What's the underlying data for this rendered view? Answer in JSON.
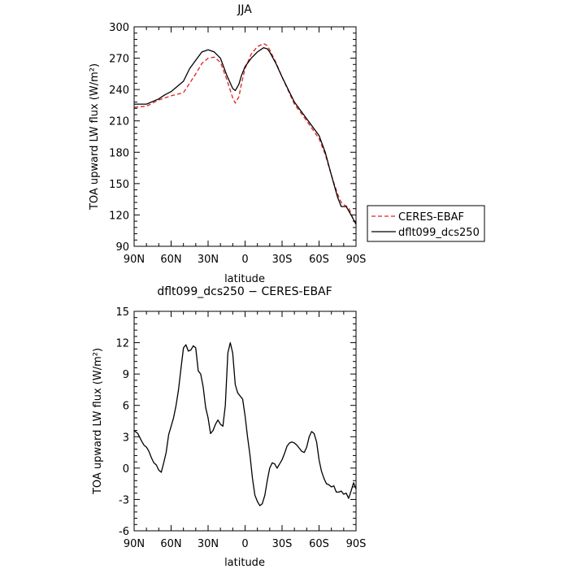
{
  "chart_data": [
    {
      "type": "line",
      "title": "JJA",
      "xlabel": "latitude",
      "ylabel": "TOA upward LW flux (W/m²)",
      "xlim": [
        90,
        -90
      ],
      "ylim": [
        90,
        300
      ],
      "yticks": [
        90,
        120,
        150,
        180,
        210,
        240,
        270,
        300
      ],
      "xticks": [
        90,
        60,
        30,
        0,
        -30,
        -60,
        -90
      ],
      "xtick_labels": [
        "90N",
        "60N",
        "30N",
        "0",
        "30S",
        "60S",
        "90S"
      ],
      "grid": false,
      "legend": {
        "placement": "right-outside",
        "entries": [
          "CERES-EBAF",
          "dflt099_dcs250"
        ]
      },
      "series": [
        {
          "name": "CERES-EBAF",
          "color": "#e02020",
          "style": "dashed",
          "x": [
            90,
            80,
            70,
            60,
            50,
            40,
            35,
            30,
            25,
            20,
            15,
            10,
            8,
            5,
            3,
            0,
            -5,
            -10,
            -15,
            -18,
            -20,
            -25,
            -30,
            -40,
            -50,
            -60,
            -65,
            -70,
            -75,
            -78,
            -80,
            -84,
            -87,
            -90
          ],
          "y": [
            223,
            224,
            230,
            234,
            237,
            255,
            265,
            270,
            271,
            266,
            250,
            232,
            227,
            233,
            245,
            260,
            274,
            281,
            284,
            282,
            278,
            266,
            252,
            226,
            210,
            193,
            178,
            158,
            140,
            132,
            130,
            127,
            118,
            112
          ]
        },
        {
          "name": "dflt099_dcs250",
          "color": "#000000",
          "style": "solid",
          "x": [
            90,
            80,
            70,
            65,
            60,
            50,
            45,
            40,
            35,
            30,
            25,
            20,
            15,
            10,
            8,
            5,
            3,
            0,
            -5,
            -10,
            -15,
            -18,
            -20,
            -25,
            -30,
            -40,
            -50,
            -60,
            -65,
            -70,
            -75,
            -78,
            -82,
            -86,
            -90
          ],
          "y": [
            226,
            226,
            231,
            235,
            238,
            248,
            260,
            268,
            276,
            278,
            276,
            270,
            254,
            241,
            239,
            245,
            253,
            262,
            270,
            276,
            280,
            279,
            276,
            265,
            252,
            228,
            212,
            196,
            180,
            158,
            137,
            128,
            128,
            120,
            111
          ]
        }
      ]
    },
    {
      "type": "line",
      "title": "dflt099_dcs250 − CERES-EBAF",
      "xlabel": "latitude",
      "ylabel": "TOA upward LW flux (W/m²)",
      "xlim": [
        90,
        -90
      ],
      "ylim": [
        -6,
        15
      ],
      "yticks": [
        -6,
        -3,
        0,
        3,
        6,
        9,
        12,
        15
      ],
      "xticks": [
        90,
        60,
        30,
        0,
        -30,
        -60,
        -90
      ],
      "xtick_labels": [
        "90N",
        "60N",
        "30N",
        "0",
        "30S",
        "60S",
        "90S"
      ],
      "grid": false,
      "series": [
        {
          "color": "#000000",
          "style": "solid",
          "x": [
            90,
            87,
            84,
            82,
            80,
            78,
            76,
            74,
            72,
            70,
            68,
            66,
            64,
            62,
            60,
            58,
            56,
            54,
            52,
            50,
            48,
            46,
            44,
            42,
            40,
            38,
            36,
            34,
            32,
            30,
            28,
            26,
            24,
            22,
            20,
            18,
            16,
            14,
            12,
            10,
            8,
            6,
            4,
            2,
            0,
            -2,
            -4,
            -6,
            -8,
            -10,
            -12,
            -14,
            -16,
            -18,
            -20,
            -22,
            -24,
            -26,
            -28,
            -30,
            -32,
            -34,
            -36,
            -38,
            -40,
            -42,
            -44,
            -46,
            -48,
            -50,
            -52,
            -54,
            -56,
            -58,
            -60,
            -62,
            -64,
            -66,
            -68,
            -70,
            -72,
            -74,
            -76,
            -78,
            -80,
            -82,
            -84,
            -86,
            -88,
            -90
          ],
          "y": [
            3.6,
            3.3,
            2.6,
            2.2,
            2.0,
            1.6,
            1.0,
            0.5,
            0.3,
            -0.2,
            -0.4,
            0.5,
            1.5,
            3.2,
            4.0,
            4.8,
            6.0,
            7.5,
            9.5,
            11.5,
            11.8,
            11.2,
            11.3,
            11.7,
            11.5,
            9.3,
            9.0,
            7.8,
            5.8,
            4.8,
            3.3,
            3.6,
            4.2,
            4.6,
            4.2,
            4.0,
            6.0,
            11.0,
            12.0,
            11.0,
            8.0,
            7.2,
            6.9,
            6.6,
            5.0,
            3.0,
            1.2,
            -1.0,
            -2.6,
            -3.2,
            -3.6,
            -3.4,
            -2.6,
            -1.2,
            0.0,
            0.5,
            0.4,
            0.0,
            0.4,
            0.8,
            1.4,
            2.1,
            2.4,
            2.5,
            2.4,
            2.2,
            1.9,
            1.6,
            1.5,
            2.0,
            3.0,
            3.5,
            3.3,
            2.5,
            0.8,
            -0.3,
            -1.0,
            -1.5,
            -1.6,
            -1.8,
            -1.7,
            -2.3,
            -2.3,
            -2.2,
            -2.5,
            -2.4,
            -2.9,
            -2.2,
            -1.4,
            -2.0
          ]
        }
      ]
    }
  ]
}
